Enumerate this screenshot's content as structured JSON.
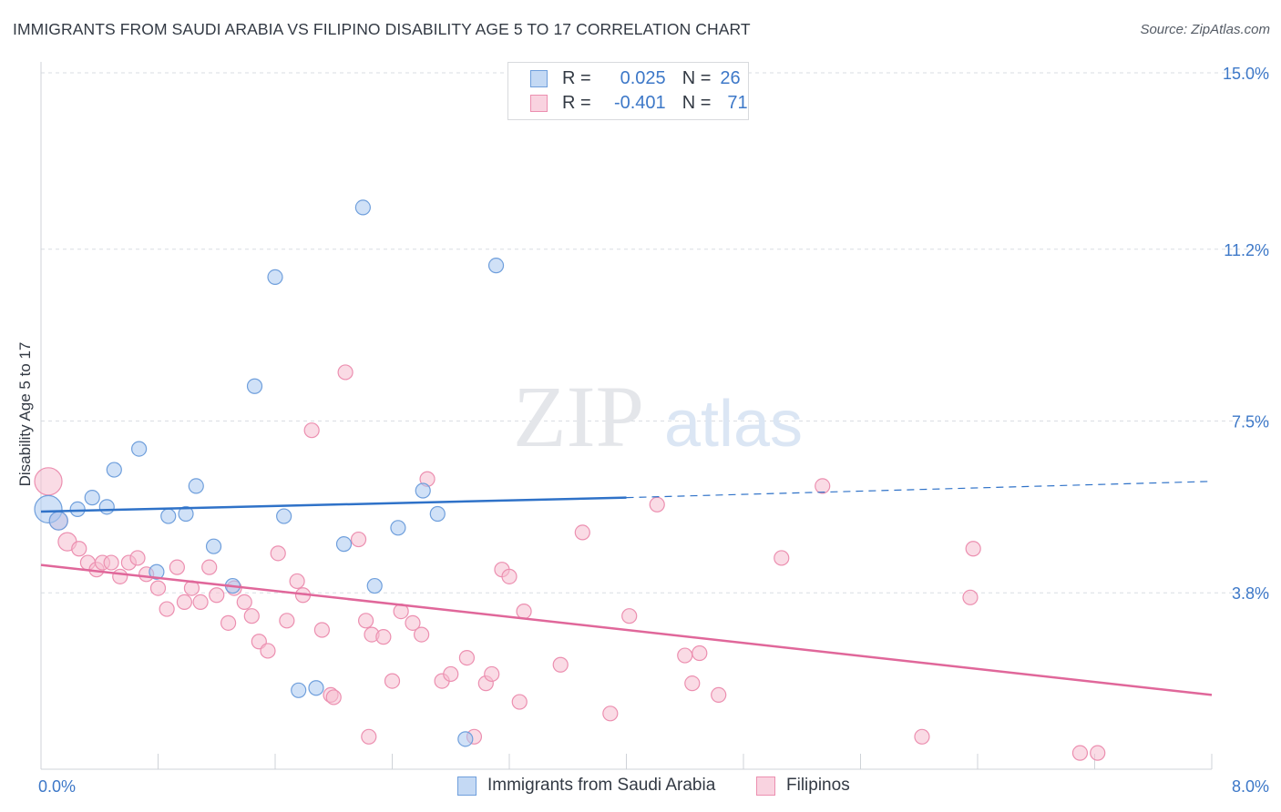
{
  "title": "IMMIGRANTS FROM SAUDI ARABIA VS FILIPINO DISABILITY AGE 5 TO 17 CORRELATION CHART",
  "source": "Source: ZipAtlas.com",
  "watermark": {
    "zip": "ZIP",
    "atlas": "atlas"
  },
  "legend": {
    "r_label": "R =",
    "n_label": "N =",
    "rows": [
      {
        "r": "0.025",
        "n": "26"
      },
      {
        "r": "-0.401",
        "n": "71"
      }
    ]
  },
  "bottom_legend": [
    "Immigrants from Saudi Arabia",
    "Filipinos"
  ],
  "colors": {
    "blue_fill": "#a9c8f0",
    "blue_stroke": "#6f9fdc",
    "blue_line": "#2f72c8",
    "pink_fill": "#f6bed0",
    "pink_stroke": "#ec8fb0",
    "pink_line": "#e0679a",
    "axis_text": "#3d78c8",
    "grid": "#d9dde3"
  },
  "chart_data": {
    "type": "scatter",
    "title": "IMMIGRANTS FROM SAUDI ARABIA VS FILIPINO DISABILITY AGE 5 TO 17 CORRELATION CHART",
    "xlabel": "",
    "ylabel": "Disability Age 5 to 17",
    "xlim": [
      0,
      8.0
    ],
    "ylim": [
      0,
      15.0
    ],
    "x_tick_labels": [
      "0.0%",
      "8.0%"
    ],
    "y_ticks": [
      3.8,
      7.5,
      11.2,
      15.0
    ],
    "y_tick_labels": [
      "3.8%",
      "7.5%",
      "11.2%",
      "15.0%"
    ],
    "grid": true,
    "legend_position": "top-center",
    "series": [
      {
        "name": "Immigrants from Saudi Arabia",
        "R": 0.025,
        "N": 26,
        "trend": {
          "x": [
            0,
            4.0
          ],
          "y": [
            5.55,
            5.85
          ],
          "dashed_to": [
            8.0,
            6.2
          ]
        },
        "points": [
          [
            0.05,
            5.6
          ],
          [
            0.12,
            5.35
          ],
          [
            0.25,
            5.6
          ],
          [
            0.35,
            5.85
          ],
          [
            0.45,
            5.65
          ],
          [
            0.5,
            6.45
          ],
          [
            0.67,
            6.9
          ],
          [
            0.79,
            4.25
          ],
          [
            0.87,
            5.45
          ],
          [
            0.99,
            5.5
          ],
          [
            1.06,
            6.1
          ],
          [
            1.18,
            4.8
          ],
          [
            1.31,
            3.95
          ],
          [
            1.46,
            8.25
          ],
          [
            1.6,
            10.6
          ],
          [
            1.66,
            5.45
          ],
          [
            1.76,
            1.7
          ],
          [
            1.88,
            1.75
          ],
          [
            2.07,
            4.85
          ],
          [
            2.2,
            12.1
          ],
          [
            2.28,
            3.95
          ],
          [
            2.44,
            5.2
          ],
          [
            2.61,
            6.0
          ],
          [
            2.71,
            5.5
          ],
          [
            2.9,
            0.65
          ],
          [
            3.11,
            10.85
          ]
        ]
      },
      {
        "name": "Filipinos",
        "R": -0.401,
        "N": 71,
        "trend": {
          "x": [
            0,
            8.0
          ],
          "y": [
            4.4,
            1.6
          ]
        },
        "points": [
          [
            0.05,
            6.2
          ],
          [
            0.12,
            5.35
          ],
          [
            0.18,
            4.9
          ],
          [
            0.26,
            4.75
          ],
          [
            0.32,
            4.45
          ],
          [
            0.38,
            4.3
          ],
          [
            0.42,
            4.45
          ],
          [
            0.48,
            4.45
          ],
          [
            0.54,
            4.15
          ],
          [
            0.6,
            4.45
          ],
          [
            0.66,
            4.55
          ],
          [
            0.72,
            4.2
          ],
          [
            0.8,
            3.9
          ],
          [
            0.86,
            3.45
          ],
          [
            0.93,
            4.35
          ],
          [
            0.98,
            3.6
          ],
          [
            1.03,
            3.9
          ],
          [
            1.09,
            3.6
          ],
          [
            1.15,
            4.35
          ],
          [
            1.2,
            3.75
          ],
          [
            1.28,
            3.15
          ],
          [
            1.32,
            3.9
          ],
          [
            1.39,
            3.6
          ],
          [
            1.44,
            3.3
          ],
          [
            1.49,
            2.75
          ],
          [
            1.55,
            2.55
          ],
          [
            1.62,
            4.65
          ],
          [
            1.68,
            3.2
          ],
          [
            1.75,
            4.05
          ],
          [
            1.79,
            3.75
          ],
          [
            1.85,
            7.3
          ],
          [
            1.92,
            3.0
          ],
          [
            1.98,
            1.6
          ],
          [
            2.0,
            1.55
          ],
          [
            2.08,
            8.55
          ],
          [
            2.17,
            4.95
          ],
          [
            2.22,
            3.2
          ],
          [
            2.26,
            2.9
          ],
          [
            2.34,
            2.85
          ],
          [
            2.4,
            1.9
          ],
          [
            2.46,
            3.4
          ],
          [
            2.54,
            3.15
          ],
          [
            2.6,
            2.9
          ],
          [
            2.64,
            6.25
          ],
          [
            2.74,
            1.9
          ],
          [
            2.8,
            2.05
          ],
          [
            2.91,
            2.4
          ],
          [
            2.96,
            0.7
          ],
          [
            3.04,
            1.85
          ],
          [
            3.08,
            2.05
          ],
          [
            3.15,
            4.3
          ],
          [
            3.2,
            4.15
          ],
          [
            3.27,
            1.45
          ],
          [
            3.3,
            3.4
          ],
          [
            3.55,
            2.25
          ],
          [
            3.7,
            5.1
          ],
          [
            3.89,
            1.2
          ],
          [
            4.02,
            3.3
          ],
          [
            4.21,
            5.7
          ],
          [
            4.4,
            2.45
          ],
          [
            4.45,
            1.85
          ],
          [
            4.5,
            2.5
          ],
          [
            4.63,
            1.6
          ],
          [
            5.06,
            4.55
          ],
          [
            5.34,
            6.1
          ],
          [
            6.02,
            0.7
          ],
          [
            6.35,
            3.7
          ],
          [
            6.37,
            4.75
          ],
          [
            7.1,
            0.35
          ],
          [
            7.22,
            0.35
          ],
          [
            2.24,
            0.7
          ]
        ]
      }
    ]
  }
}
